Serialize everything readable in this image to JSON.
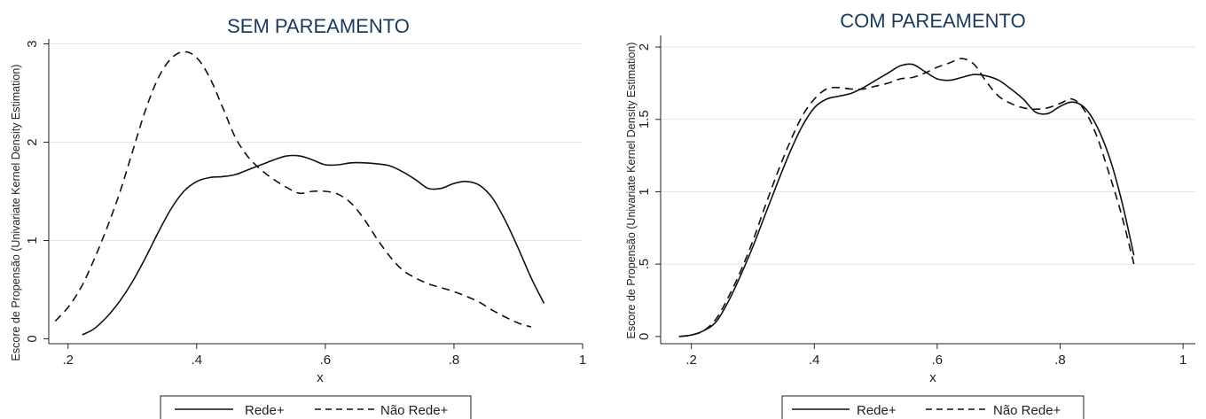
{
  "chart_data": [
    {
      "type": "line",
      "title": "SEM PAREAMENTO",
      "xlabel": "x",
      "ylabel": "Escore de Propensão (Univariate Kernel Density Estimation)",
      "xlim": [
        0.17,
        1.0
      ],
      "ylim": [
        -0.05,
        3.05
      ],
      "xticks": [
        ".2",
        ".4",
        ".6",
        ".8",
        "1"
      ],
      "xtick_values": [
        0.2,
        0.4,
        0.6,
        0.8,
        1.0
      ],
      "yticks": [
        "0",
        "1",
        "2",
        "3"
      ],
      "ytick_values": [
        0,
        1,
        2,
        3
      ],
      "grid": true,
      "legend_position": "bottom",
      "series": [
        {
          "name": "Rede+",
          "style": "solid",
          "points": [
            [
              0.222,
              0.04
            ],
            [
              0.24,
              0.1
            ],
            [
              0.26,
              0.22
            ],
            [
              0.28,
              0.38
            ],
            [
              0.3,
              0.58
            ],
            [
              0.32,
              0.82
            ],
            [
              0.34,
              1.08
            ],
            [
              0.36,
              1.32
            ],
            [
              0.38,
              1.5
            ],
            [
              0.4,
              1.6
            ],
            [
              0.42,
              1.64
            ],
            [
              0.44,
              1.65
            ],
            [
              0.46,
              1.67
            ],
            [
              0.48,
              1.72
            ],
            [
              0.5,
              1.77
            ],
            [
              0.52,
              1.82
            ],
            [
              0.54,
              1.86
            ],
            [
              0.56,
              1.86
            ],
            [
              0.58,
              1.82
            ],
            [
              0.6,
              1.77
            ],
            [
              0.62,
              1.77
            ],
            [
              0.64,
              1.79
            ],
            [
              0.66,
              1.79
            ],
            [
              0.68,
              1.78
            ],
            [
              0.7,
              1.76
            ],
            [
              0.72,
              1.7
            ],
            [
              0.74,
              1.62
            ],
            [
              0.76,
              1.53
            ],
            [
              0.78,
              1.53
            ],
            [
              0.8,
              1.58
            ],
            [
              0.82,
              1.6
            ],
            [
              0.84,
              1.56
            ],
            [
              0.86,
              1.43
            ],
            [
              0.88,
              1.2
            ],
            [
              0.9,
              0.92
            ],
            [
              0.92,
              0.62
            ],
            [
              0.94,
              0.36
            ]
          ]
        },
        {
          "name": "Não Rede+",
          "style": "dashed",
          "points": [
            [
              0.18,
              0.18
            ],
            [
              0.2,
              0.32
            ],
            [
              0.22,
              0.52
            ],
            [
              0.24,
              0.8
            ],
            [
              0.26,
              1.12
            ],
            [
              0.28,
              1.48
            ],
            [
              0.3,
              1.9
            ],
            [
              0.32,
              2.32
            ],
            [
              0.34,
              2.65
            ],
            [
              0.36,
              2.85
            ],
            [
              0.38,
              2.92
            ],
            [
              0.4,
              2.86
            ],
            [
              0.42,
              2.66
            ],
            [
              0.44,
              2.36
            ],
            [
              0.46,
              2.05
            ],
            [
              0.48,
              1.85
            ],
            [
              0.5,
              1.72
            ],
            [
              0.52,
              1.62
            ],
            [
              0.54,
              1.54
            ],
            [
              0.56,
              1.48
            ],
            [
              0.58,
              1.5
            ],
            [
              0.6,
              1.5
            ],
            [
              0.62,
              1.47
            ],
            [
              0.64,
              1.38
            ],
            [
              0.66,
              1.22
            ],
            [
              0.68,
              1.02
            ],
            [
              0.7,
              0.84
            ],
            [
              0.72,
              0.7
            ],
            [
              0.74,
              0.62
            ],
            [
              0.76,
              0.56
            ],
            [
              0.78,
              0.52
            ],
            [
              0.8,
              0.48
            ],
            [
              0.82,
              0.43
            ],
            [
              0.84,
              0.37
            ],
            [
              0.86,
              0.29
            ],
            [
              0.88,
              0.22
            ],
            [
              0.9,
              0.16
            ],
            [
              0.92,
              0.12
            ]
          ]
        }
      ]
    },
    {
      "type": "line",
      "title": "COM PAREAMENTO",
      "xlabel": "x",
      "ylabel": "Escore de Propensão (Univariate Kernel Density Estimation)",
      "xlim": [
        0.15,
        1.02
      ],
      "ylim": [
        -0.05,
        2.08
      ],
      "xticks": [
        ".2",
        ".4",
        ".6",
        ".8",
        "1"
      ],
      "xtick_values": [
        0.2,
        0.4,
        0.6,
        0.8,
        1.0
      ],
      "yticks": [
        "0",
        ".5",
        "1",
        "1.5",
        "2"
      ],
      "ytick_values": [
        0,
        0.5,
        1,
        1.5,
        2
      ],
      "grid": true,
      "legend_position": "bottom",
      "series": [
        {
          "name": "Rede+",
          "style": "solid",
          "points": [
            [
              0.18,
              0.0
            ],
            [
              0.2,
              0.01
            ],
            [
              0.22,
              0.04
            ],
            [
              0.24,
              0.1
            ],
            [
              0.26,
              0.24
            ],
            [
              0.28,
              0.42
            ],
            [
              0.3,
              0.62
            ],
            [
              0.32,
              0.84
            ],
            [
              0.34,
              1.06
            ],
            [
              0.36,
              1.27
            ],
            [
              0.38,
              1.45
            ],
            [
              0.4,
              1.58
            ],
            [
              0.42,
              1.64
            ],
            [
              0.44,
              1.66
            ],
            [
              0.46,
              1.68
            ],
            [
              0.48,
              1.72
            ],
            [
              0.5,
              1.77
            ],
            [
              0.52,
              1.82
            ],
            [
              0.54,
              1.87
            ],
            [
              0.56,
              1.88
            ],
            [
              0.58,
              1.83
            ],
            [
              0.6,
              1.78
            ],
            [
              0.62,
              1.77
            ],
            [
              0.64,
              1.79
            ],
            [
              0.66,
              1.81
            ],
            [
              0.68,
              1.8
            ],
            [
              0.7,
              1.77
            ],
            [
              0.72,
              1.71
            ],
            [
              0.74,
              1.64
            ],
            [
              0.76,
              1.55
            ],
            [
              0.78,
              1.54
            ],
            [
              0.8,
              1.59
            ],
            [
              0.82,
              1.62
            ],
            [
              0.84,
              1.58
            ],
            [
              0.86,
              1.45
            ],
            [
              0.88,
              1.24
            ],
            [
              0.9,
              0.94
            ],
            [
              0.92,
              0.56
            ]
          ]
        },
        {
          "name": "Não Rede+",
          "style": "dashed",
          "points": [
            [
              0.18,
              0.0
            ],
            [
              0.2,
              0.01
            ],
            [
              0.22,
              0.04
            ],
            [
              0.24,
              0.12
            ],
            [
              0.26,
              0.27
            ],
            [
              0.28,
              0.45
            ],
            [
              0.3,
              0.66
            ],
            [
              0.32,
              0.9
            ],
            [
              0.34,
              1.13
            ],
            [
              0.36,
              1.34
            ],
            [
              0.38,
              1.52
            ],
            [
              0.4,
              1.64
            ],
            [
              0.42,
              1.71
            ],
            [
              0.44,
              1.72
            ],
            [
              0.46,
              1.71
            ],
            [
              0.48,
              1.71
            ],
            [
              0.5,
              1.73
            ],
            [
              0.52,
              1.75
            ],
            [
              0.54,
              1.78
            ],
            [
              0.56,
              1.79
            ],
            [
              0.58,
              1.82
            ],
            [
              0.6,
              1.86
            ],
            [
              0.62,
              1.89
            ],
            [
              0.64,
              1.92
            ],
            [
              0.66,
              1.88
            ],
            [
              0.68,
              1.76
            ],
            [
              0.7,
              1.66
            ],
            [
              0.72,
              1.61
            ],
            [
              0.74,
              1.58
            ],
            [
              0.76,
              1.57
            ],
            [
              0.78,
              1.58
            ],
            [
              0.8,
              1.61
            ],
            [
              0.82,
              1.64
            ],
            [
              0.84,
              1.56
            ],
            [
              0.86,
              1.38
            ],
            [
              0.88,
              1.12
            ],
            [
              0.9,
              0.84
            ],
            [
              0.92,
              0.5
            ]
          ]
        }
      ]
    }
  ]
}
